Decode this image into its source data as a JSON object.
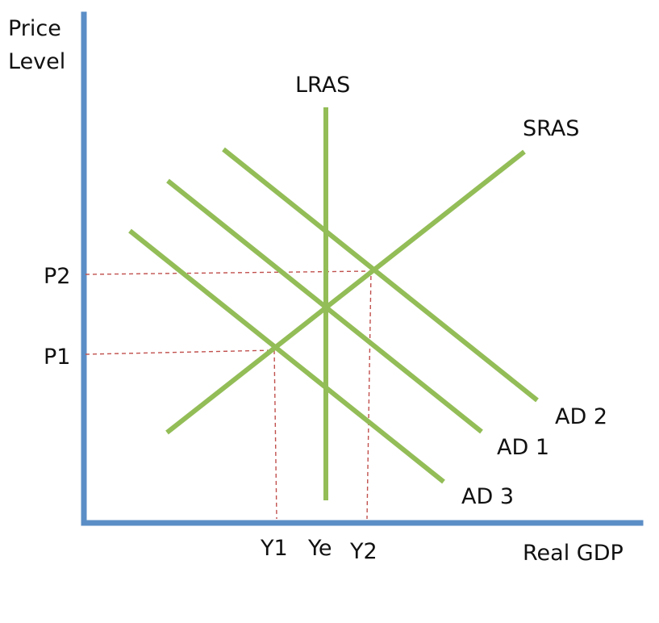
{
  "axes": {
    "y_label_line1": "Price",
    "y_label_line2": "Level",
    "x_label": "Real GDP"
  },
  "curves": {
    "lras": "LRAS",
    "sras": "SRAS",
    "ad1": "AD 1",
    "ad2": "AD 2",
    "ad3": "AD 3"
  },
  "price_levels": {
    "p1": "P1",
    "p2": "P2"
  },
  "output_levels": {
    "y1": "Y1",
    "ye": "Ye",
    "y2": "Y2"
  },
  "colors": {
    "axis": "#5b8ec6",
    "curve": "#93bd57",
    "guide": "#c0504d"
  }
}
